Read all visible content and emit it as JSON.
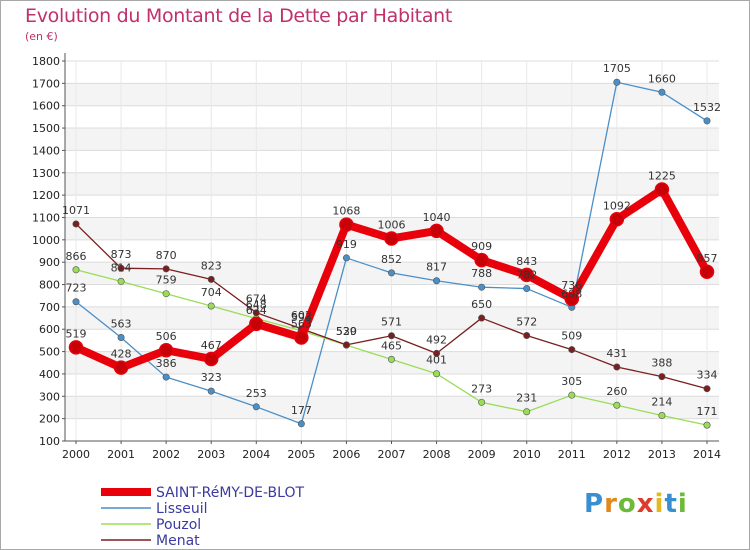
{
  "chart_data": {
    "type": "line",
    "title": "Evolution du Montant de la Dette par Habitant",
    "subtitle": "(en €)",
    "x": [
      "2000",
      "2001",
      "2002",
      "2003",
      "2004",
      "2005",
      "2006",
      "2007",
      "2008",
      "2009",
      "2010",
      "2011",
      "2012",
      "2013",
      "2014"
    ],
    "ylim": [
      100,
      1800
    ],
    "yticks": [
      100,
      200,
      300,
      400,
      500,
      600,
      700,
      800,
      900,
      1000,
      1100,
      1200,
      1300,
      1400,
      1500,
      1600,
      1700,
      1800
    ],
    "grid": true,
    "legend_position": "bottom-left",
    "series": [
      {
        "name": "SAINT-RéMY-DE-BLOT",
        "color": "#e8000b",
        "width": 8,
        "marker": 6.5,
        "values": [
          519,
          428,
          506,
          467,
          624,
          563,
          1068,
          1006,
          1040,
          909,
          843,
          736,
          1092,
          1225,
          857
        ],
        "labels": [
          "519",
          "428",
          "506",
          "467",
          "624",
          "563",
          "1068",
          "1006",
          "1040",
          "909",
          "843",
          "736",
          "1092",
          "1225",
          "857"
        ]
      },
      {
        "name": "Lisseuil",
        "color": "#4a8fc7",
        "width": 1.3,
        "marker": 3.2,
        "values": [
          723,
          563,
          386,
          323,
          253,
          177,
          919,
          852,
          817,
          788,
          782,
          698,
          1705,
          1660,
          1532
        ],
        "labels": [
          "723",
          "563",
          "386",
          "323",
          "253",
          "177",
          "919",
          "852",
          "817",
          "788",
          "782",
          "698",
          "1705",
          "1660",
          "1532"
        ]
      },
      {
        "name": "Pouzol",
        "color": "#99dd55",
        "width": 1.3,
        "marker": 3.2,
        "values": [
          866,
          814,
          759,
          704,
          648,
          593,
          529,
          465,
          401,
          273,
          231,
          305,
          260,
          214,
          171
        ],
        "labels": [
          "866",
          "814",
          "759",
          "704",
          "648",
          "593",
          "529",
          "465",
          "401",
          "273",
          "231",
          "305",
          "260",
          "214",
          "171"
        ]
      },
      {
        "name": "Menat",
        "color": "#7a1f1f",
        "width": 1.3,
        "marker": 3.2,
        "values": [
          1071,
          873,
          870,
          823,
          674,
          602,
          530,
          571,
          492,
          650,
          572,
          509,
          431,
          388,
          334
        ],
        "labels": [
          "1071",
          "873",
          "870",
          "823",
          "674",
          "602",
          "530",
          "571",
          "492",
          "650",
          "572",
          "509",
          "431",
          "388",
          "334"
        ]
      }
    ]
  },
  "logo": {
    "letters": [
      "P",
      "r",
      "o",
      "x",
      "i",
      "t",
      "i"
    ],
    "colors": [
      "#3a8fd0",
      "#e08a1e",
      "#6cba3a",
      "#e03a2a",
      "#e6b81e",
      "#3a8fd0",
      "#6cba3a"
    ]
  }
}
